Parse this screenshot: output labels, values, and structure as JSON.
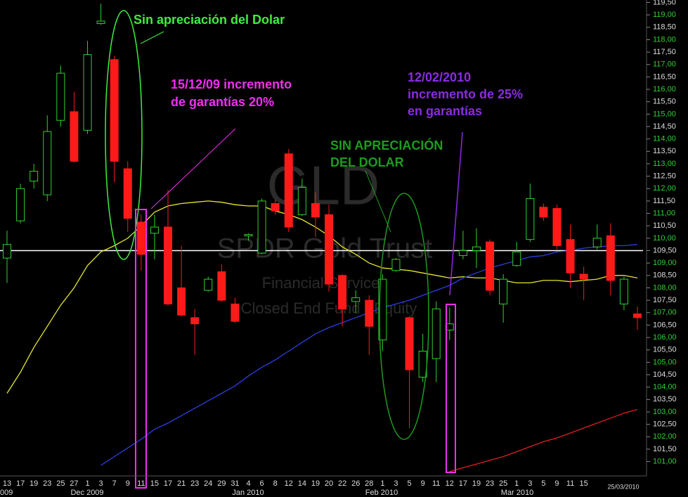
{
  "chart_data": {
    "type": "candlestick",
    "categories": [
      "13",
      "17",
      "19",
      "23",
      "25",
      "27",
      "1",
      "3",
      "7",
      "9",
      "11",
      "15",
      "17",
      "21",
      "23",
      "24",
      "29",
      "31",
      "4",
      "6",
      "8",
      "12",
      "14",
      "19",
      "20",
      "22",
      "26",
      "28",
      "1",
      "3",
      "5",
      "9",
      "11",
      "12",
      "17",
      "19",
      "23",
      "25",
      "1",
      "3",
      "5",
      "9",
      "11",
      "15",
      null,
      null,
      null,
      null
    ],
    "open": [
      109.2,
      110.7,
      112.3,
      111.75,
      114.75,
      115.1,
      114.35,
      118.65,
      117.2,
      112.8,
      110.65,
      110.2,
      110.45,
      108.0,
      106.8,
      107.9,
      108.65,
      107.35,
      110.1,
      109.4,
      111.4,
      113.4,
      110.95,
      111.4,
      110.95,
      108.5,
      107.45,
      107.5,
      105.9,
      108.7,
      106.8,
      104.4,
      105.15,
      106.3,
      109.3,
      109.5,
      109.85,
      107.35,
      108.9,
      109.95,
      111.25,
      111.2,
      109.95,
      108.55,
      109.65,
      110.1,
      107.35,
      106.95
    ],
    "high": [
      110.3,
      112.2,
      113.0,
      114.95,
      116.95,
      115.9,
      117.95,
      119.45,
      117.35,
      113.1,
      110.95,
      110.95,
      111.95,
      109.7,
      107.15,
      108.45,
      108.95,
      107.6,
      110.2,
      111.6,
      111.55,
      113.6,
      112.4,
      111.85,
      111.35,
      108.55,
      107.9,
      107.7,
      108.55,
      109.2,
      106.85,
      106.15,
      107.45,
      107.2,
      110.3,
      110.4,
      109.95,
      108.55,
      109.85,
      112.2,
      111.4,
      111.35,
      110.55,
      108.85,
      110.55,
      110.6,
      108.45,
      107.25
    ],
    "low": [
      108.2,
      110.6,
      112.0,
      111.5,
      114.5,
      113.05,
      114.2,
      118.6,
      112.25,
      110.25,
      108.7,
      109.15,
      107.3,
      106.85,
      105.3,
      107.85,
      107.45,
      106.6,
      109.9,
      109.35,
      110.95,
      110.25,
      110.9,
      110.05,
      107.85,
      106.45,
      107.0,
      105.3,
      105.45,
      108.65,
      102.35,
      104.2,
      104.2,
      105.9,
      109.15,
      108.8,
      107.7,
      106.6,
      108.85,
      109.85,
      110.7,
      109.55,
      108.0,
      107.5,
      109.55,
      107.7,
      107.1,
      106.3
    ],
    "close": [
      109.75,
      112.0,
      112.7,
      114.3,
      116.65,
      113.1,
      117.4,
      118.75,
      113.1,
      110.8,
      109.35,
      110.45,
      107.35,
      106.9,
      106.55,
      108.35,
      107.5,
      106.65,
      110.15,
      111.5,
      111.1,
      110.45,
      112.05,
      110.85,
      108.15,
      107.15,
      107.6,
      106.45,
      108.35,
      109.15,
      104.7,
      105.45,
      107.15,
      106.55,
      109.5,
      109.65,
      107.9,
      108.35,
      109.45,
      111.6,
      110.85,
      109.7,
      108.6,
      108.35,
      110.0,
      108.3,
      108.35,
      106.8
    ],
    "up_color": "#2fd12f",
    "down_color": "#ff1a1a",
    "overlays": [
      {
        "color": "#e6e62e",
        "values": [
          103.75,
          104.6,
          105.6,
          106.45,
          107.3,
          108.0,
          108.9,
          109.45,
          109.7,
          110.0,
          110.5,
          111.05,
          111.3,
          111.4,
          111.45,
          111.5,
          111.45,
          111.35,
          111.3,
          111.3,
          111.1,
          110.95,
          110.75,
          110.45,
          110.1,
          109.65,
          109.35,
          109.0,
          108.8,
          108.75,
          108.7,
          108.6,
          108.5,
          108.4,
          108.45,
          108.4,
          108.4,
          108.3,
          108.2,
          108.2,
          108.3,
          108.3,
          108.25,
          108.3,
          108.35,
          108.5,
          108.5,
          108.4
        ]
      },
      {
        "color": "#2a3fe0",
        "values": [
          null,
          null,
          null,
          null,
          null,
          null,
          null,
          100.85,
          101.2,
          101.55,
          101.9,
          102.3,
          102.55,
          102.85,
          103.15,
          103.45,
          103.75,
          104.05,
          104.45,
          104.8,
          105.1,
          105.45,
          105.8,
          106.15,
          106.4,
          106.6,
          106.8,
          107.0,
          107.2,
          107.35,
          107.5,
          107.7,
          107.9,
          108.1,
          108.4,
          108.6,
          108.8,
          108.95,
          109.1,
          109.25,
          109.3,
          109.45,
          109.5,
          109.6,
          109.65,
          109.7,
          109.7,
          109.75
        ]
      },
      {
        "color": "#e02020",
        "values": [
          null,
          null,
          null,
          null,
          null,
          null,
          null,
          null,
          null,
          null,
          null,
          null,
          null,
          null,
          null,
          null,
          null,
          null,
          null,
          null,
          null,
          null,
          null,
          null,
          null,
          null,
          null,
          null,
          null,
          null,
          null,
          null,
          null,
          100.6,
          100.75,
          100.9,
          101.05,
          101.2,
          101.4,
          101.6,
          101.8,
          101.95,
          102.15,
          102.35,
          102.55,
          102.75,
          102.95,
          103.1
        ]
      }
    ],
    "reference_line": {
      "value": 109.5,
      "color": "#ffffff"
    },
    "ylim": [
      100.45,
      119.6
    ],
    "yticks": [
      {
        "value": 101,
        "label": "101,00"
      },
      {
        "value": 101.5,
        "label": "101,50"
      },
      {
        "value": 102,
        "label": "102,00"
      },
      {
        "value": 102.5,
        "label": "102,50"
      },
      {
        "value": 103,
        "label": "103,00"
      },
      {
        "value": 103.5,
        "label": "103,50"
      },
      {
        "value": 104,
        "label": "104,00"
      },
      {
        "value": 104.5,
        "label": "104,50"
      },
      {
        "value": 105,
        "label": "105,00"
      },
      {
        "value": 105.5,
        "label": "105,50"
      },
      {
        "value": 106,
        "label": "106,00"
      },
      {
        "value": 106.5,
        "label": "106,50"
      },
      {
        "value": 107,
        "label": "107,00"
      },
      {
        "value": 107.5,
        "label": "107,50"
      },
      {
        "value": 108,
        "label": "108,00"
      },
      {
        "value": 108.5,
        "label": "108,50"
      },
      {
        "value": 109,
        "label": "109,00"
      },
      {
        "value": 109.5,
        "label": "109,50"
      },
      {
        "value": 110,
        "label": "110,00"
      },
      {
        "value": 110.5,
        "label": "110,50"
      },
      {
        "value": 111,
        "label": "111,00"
      },
      {
        "value": 111.5,
        "label": "111,50"
      },
      {
        "value": 112,
        "label": "112,00"
      },
      {
        "value": 112.5,
        "label": "112,50"
      },
      {
        "value": 113,
        "label": "113,00"
      },
      {
        "value": 113.5,
        "label": "113,50"
      },
      {
        "value": 114,
        "label": "114,00"
      },
      {
        "value": 114.5,
        "label": "114,50"
      },
      {
        "value": 115,
        "label": "115,00"
      },
      {
        "value": 115.5,
        "label": "115,50"
      },
      {
        "value": 116,
        "label": "116,00"
      },
      {
        "value": 116.5,
        "label": "116,50"
      },
      {
        "value": 117,
        "label": "117,00"
      },
      {
        "value": 117.5,
        "label": "117,50"
      },
      {
        "value": 118,
        "label": "118,00"
      },
      {
        "value": 118.5,
        "label": "118,50"
      },
      {
        "value": 119,
        "label": "119,00"
      },
      {
        "value": 119.5,
        "label": "119,50"
      }
    ],
    "months": [
      "009",
      "Dec 2009",
      "Jan 2010",
      "Feb 2010",
      "Mar 2010"
    ],
    "last_date": "25/03/2010",
    "watermark": [
      "GLD",
      "SPDR Gold Trust",
      "Financial Services",
      "Closed End Fund - Equity"
    ],
    "annotations": [
      {
        "text": "Sin apreciación del Dolar",
        "color": "#3cf03c"
      },
      {
        "text": "15/12/09 incremento",
        "color": "#f22ef2"
      },
      {
        "text": "de garantías 20%",
        "color": "#f22ef2"
      },
      {
        "text": "12/02/2010",
        "color": "#8a2be2"
      },
      {
        "text": "incremento de 25%",
        "color": "#8a2be2"
      },
      {
        "text": "en garantías",
        "color": "#8a2be2"
      },
      {
        "text": "SIN APRECIACIÓN",
        "color": "#1f9a1f"
      },
      {
        "text": "DEL DOLAR",
        "color": "#1f9a1f"
      }
    ]
  }
}
